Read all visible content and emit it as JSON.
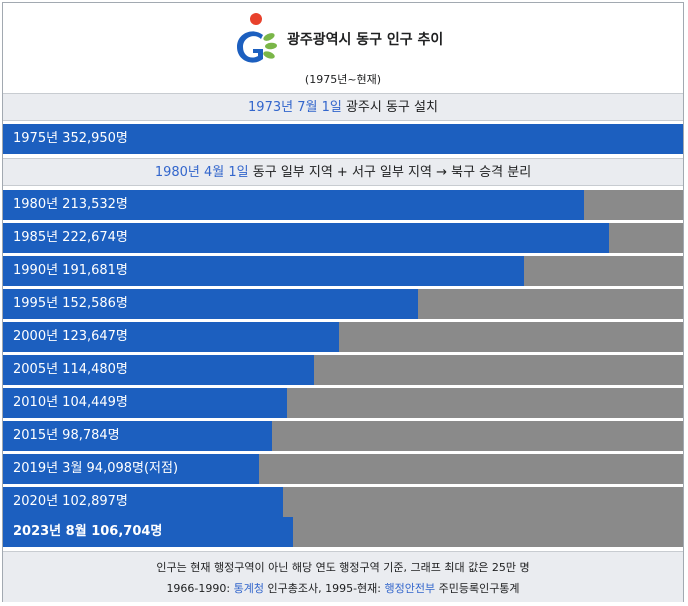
{
  "header": {
    "title": "광주광역시 동구 인구 추이",
    "subtitle": "(1975년~현재)"
  },
  "events": [
    {
      "date": "1973년 7월 1일",
      "text": "광주시 동구 설치"
    },
    {
      "date": "1980년 4월 1일",
      "text": "동구 일부 지역 + 서구 일부 지역 → 북구 승격 분리"
    }
  ],
  "population_max": 250000,
  "rows": [
    {
      "label": "1975년 352,950명",
      "value": 352950,
      "bold": false
    },
    {
      "label": "1980년 213,532명",
      "value": 213532,
      "bold": false
    },
    {
      "label": "1985년 222,674명",
      "value": 222674,
      "bold": false
    },
    {
      "label": "1990년 191,681명",
      "value": 191681,
      "bold": false
    },
    {
      "label": "1995년 152,586명",
      "value": 152586,
      "bold": false
    },
    {
      "label": "2000년 123,647명",
      "value": 123647,
      "bold": false
    },
    {
      "label": "2005년 114,480명",
      "value": 114480,
      "bold": false
    },
    {
      "label": "2010년 104,449명",
      "value": 104449,
      "bold": false
    },
    {
      "label": "2015년 98,784명",
      "value": 98784,
      "bold": false
    },
    {
      "label": "2019년 3월 94,098명(저점)",
      "value": 94098,
      "bold": false
    },
    {
      "label": "2020년 102,897명",
      "value": 102897,
      "bold": false
    },
    {
      "label": "2023년 8월 106,704명",
      "value": 106704,
      "bold": true
    }
  ],
  "footer": {
    "note": "인구는 현재 행정구역이 아닌 해당 연도 행정구역 기준, 그래프 최대 값은 25만 명",
    "source_prefix": "1966-1990: ",
    "source1_link": "통계청",
    "source1_text": " 인구총조사, 1995-현재: ",
    "source2_link": "행정안전부",
    "source2_text": " 주민등록인구통계"
  },
  "colors": {
    "bar": "#1c5fbf",
    "track": "#8a8a8a",
    "event_bg": "#eaecf0",
    "link": "#3366cc"
  }
}
